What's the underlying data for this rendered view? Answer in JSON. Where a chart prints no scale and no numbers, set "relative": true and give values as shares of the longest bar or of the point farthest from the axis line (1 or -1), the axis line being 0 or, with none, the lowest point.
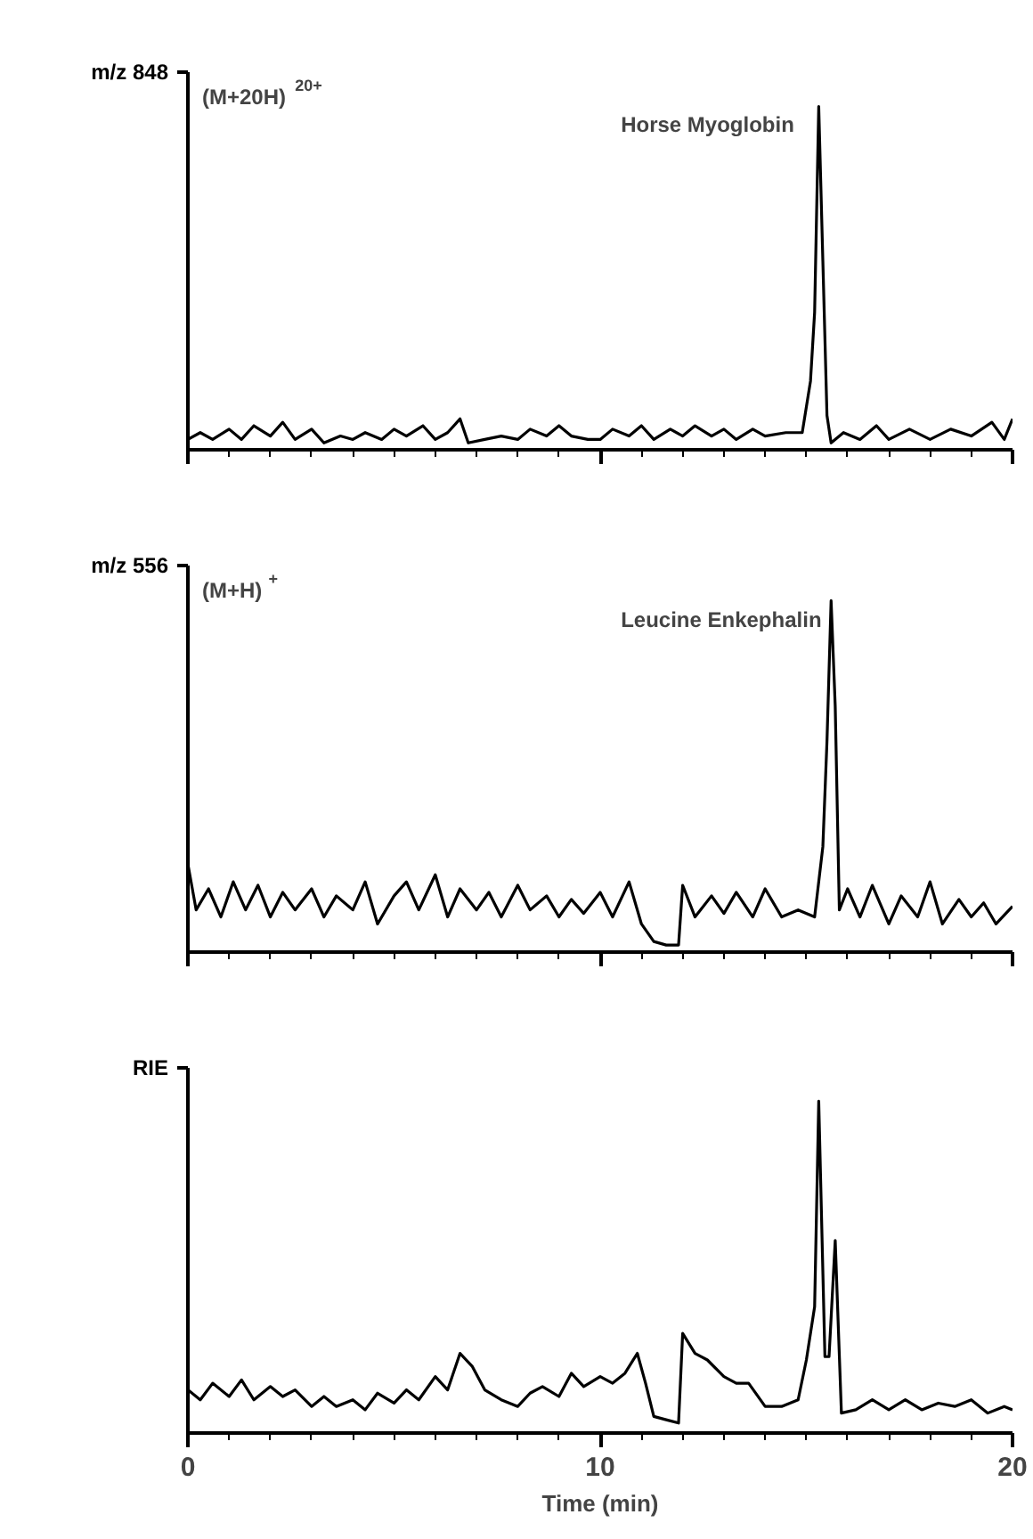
{
  "chart_data": [
    {
      "type": "line",
      "relative": true,
      "ylabel": "m/z 848",
      "annotations": [
        "(M+20H)$^{20+}$"
      ],
      "xlim": [
        0,
        20
      ],
      "xticks": [
        0,
        10,
        20
      ],
      "tick_labels": false,
      "series": [
        {
          "name": "Horse Myoglobin",
          "color": "#000000",
          "x": [
            0,
            0.3,
            0.6,
            1,
            1.3,
            1.6,
            2,
            2.3,
            2.6,
            3,
            3.3,
            3.7,
            4,
            4.3,
            4.7,
            5,
            5.3,
            5.7,
            6,
            6.3,
            6.6,
            6.8,
            7.2,
            7.6,
            8,
            8.3,
            8.7,
            9,
            9.3,
            9.7,
            10,
            10.3,
            10.7,
            11,
            11.3,
            11.7,
            12,
            12.3,
            12.7,
            13,
            13.3,
            13.7,
            14,
            14.5,
            14.9,
            15.1,
            15.2,
            15.3,
            15.4,
            15.5,
            15.6,
            15.9,
            16.3,
            16.7,
            17,
            17.5,
            18,
            18.5,
            19,
            19.5,
            19.8,
            20
          ],
          "values": [
            0.03,
            0.05,
            0.03,
            0.06,
            0.03,
            0.07,
            0.04,
            0.08,
            0.03,
            0.06,
            0.02,
            0.04,
            0.03,
            0.05,
            0.03,
            0.06,
            0.04,
            0.07,
            0.03,
            0.05,
            0.09,
            0.02,
            0.03,
            0.04,
            0.03,
            0.06,
            0.04,
            0.07,
            0.04,
            0.03,
            0.03,
            0.06,
            0.04,
            0.07,
            0.03,
            0.06,
            0.04,
            0.07,
            0.04,
            0.06,
            0.03,
            0.06,
            0.04,
            0.05,
            0.05,
            0.2,
            0.4,
            1.0,
            0.55,
            0.1,
            0.02,
            0.05,
            0.03,
            0.07,
            0.03,
            0.06,
            0.03,
            0.06,
            0.04,
            0.08,
            0.03,
            0.09
          ]
        }
      ]
    },
    {
      "type": "line",
      "relative": true,
      "ylabel": "m/z 556",
      "annotations": [
        "(M+H)$^{+}$"
      ],
      "xlim": [
        0,
        20
      ],
      "xticks": [
        0,
        10,
        20
      ],
      "tick_labels": false,
      "series": [
        {
          "name": "Leucine Enkephalin",
          "color": "#000000",
          "x": [
            0,
            0.2,
            0.5,
            0.8,
            1.1,
            1.4,
            1.7,
            2,
            2.3,
            2.6,
            3,
            3.3,
            3.6,
            4,
            4.3,
            4.6,
            5,
            5.3,
            5.6,
            6,
            6.3,
            6.6,
            7,
            7.3,
            7.6,
            8,
            8.3,
            8.7,
            9,
            9.3,
            9.6,
            10,
            10.3,
            10.7,
            11,
            11.3,
            11.6,
            11.9,
            12,
            12.3,
            12.7,
            13,
            13.3,
            13.7,
            14,
            14.4,
            14.8,
            15.2,
            15.4,
            15.5,
            15.6,
            15.7,
            15.8,
            16,
            16.3,
            16.6,
            17,
            17.3,
            17.7,
            18,
            18.3,
            18.7,
            19,
            19.3,
            19.6,
            20
          ],
          "values": [
            0.25,
            0.12,
            0.18,
            0.1,
            0.2,
            0.12,
            0.19,
            0.1,
            0.17,
            0.12,
            0.18,
            0.1,
            0.16,
            0.12,
            0.2,
            0.08,
            0.16,
            0.2,
            0.12,
            0.22,
            0.1,
            0.18,
            0.12,
            0.17,
            0.1,
            0.19,
            0.12,
            0.16,
            0.1,
            0.15,
            0.11,
            0.17,
            0.1,
            0.2,
            0.08,
            0.03,
            0.02,
            0.02,
            0.19,
            0.1,
            0.16,
            0.11,
            0.17,
            0.1,
            0.18,
            0.1,
            0.12,
            0.1,
            0.3,
            0.6,
            1.0,
            0.7,
            0.12,
            0.18,
            0.1,
            0.19,
            0.08,
            0.16,
            0.1,
            0.2,
            0.08,
            0.15,
            0.1,
            0.14,
            0.08,
            0.13
          ]
        }
      ]
    },
    {
      "type": "line",
      "relative": true,
      "ylabel": "RIE",
      "xlabel": "Time (min)",
      "xlim": [
        0,
        20
      ],
      "xticks": [
        0,
        10,
        20
      ],
      "tick_labels": "x",
      "series": [
        {
          "color": "#000000",
          "x": [
            0,
            0.3,
            0.6,
            1,
            1.3,
            1.6,
            2,
            2.3,
            2.6,
            3,
            3.3,
            3.6,
            4,
            4.3,
            4.6,
            5,
            5.3,
            5.6,
            6,
            6.3,
            6.6,
            6.9,
            7.2,
            7.6,
            8,
            8.3,
            8.6,
            9,
            9.3,
            9.6,
            10,
            10.3,
            10.6,
            10.9,
            11.1,
            11.3,
            11.6,
            11.9,
            12,
            12.3,
            12.6,
            13,
            13.3,
            13.6,
            14,
            14.4,
            14.8,
            15,
            15.2,
            15.3,
            15.45,
            15.55,
            15.7,
            15.85,
            16.2,
            16.6,
            17,
            17.4,
            17.8,
            18.2,
            18.6,
            19,
            19.4,
            19.8,
            20
          ],
          "values": [
            0.13,
            0.1,
            0.15,
            0.11,
            0.16,
            0.1,
            0.14,
            0.11,
            0.13,
            0.08,
            0.11,
            0.08,
            0.1,
            0.07,
            0.12,
            0.09,
            0.13,
            0.1,
            0.17,
            0.13,
            0.24,
            0.2,
            0.13,
            0.1,
            0.08,
            0.12,
            0.14,
            0.11,
            0.18,
            0.14,
            0.17,
            0.15,
            0.18,
            0.24,
            0.15,
            0.05,
            0.04,
            0.03,
            0.3,
            0.24,
            0.22,
            0.17,
            0.15,
            0.15,
            0.08,
            0.08,
            0.1,
            0.22,
            0.38,
            1.0,
            0.23,
            0.23,
            0.58,
            0.06,
            0.07,
            0.1,
            0.07,
            0.1,
            0.07,
            0.09,
            0.08,
            0.1,
            0.06,
            0.08,
            0.07
          ]
        }
      ]
    }
  ]
}
